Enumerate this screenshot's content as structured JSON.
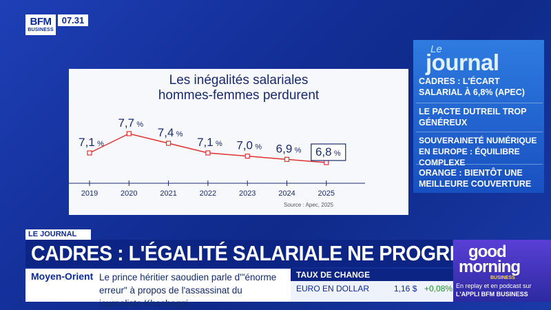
{
  "header": {
    "logo_top": "BFM",
    "logo_bottom": "BUSINESS",
    "time": "07.31"
  },
  "chart_panel": {
    "title_line1": "Les inégalités salariales",
    "title_line2": "hommes-femmes perdurent",
    "source": "Source : Apec, 2025"
  },
  "chart_data": {
    "type": "line",
    "title": "Les inégalités salariales hommes-femmes perdurent",
    "categories": [
      "2019",
      "2020",
      "2021",
      "2022",
      "2023",
      "2024",
      "2025"
    ],
    "series": [
      {
        "values": [
          7.1,
          7.7,
          7.4,
          7.1,
          7.0,
          6.9,
          6.8
        ]
      }
    ],
    "value_labels": [
      "7,1",
      "7,7",
      "7,4",
      "7,1",
      "7,0",
      "6,9",
      "6,8"
    ],
    "unit": "%",
    "highlighted": "2025",
    "line_color": "#e03030"
  },
  "journal": {
    "le": "Le",
    "title": "journal",
    "items": [
      "CADRES : L'ÉCART SALARIAL À 6,8% (APEC)",
      "LE PACTE DUTREIL TROP GÉNÉREUX",
      "SOUVERAINETÉ NUMÉRIQUE EN EUROPE : ÉQUILIBRE COMPLEXE",
      "ORANGE : BIENTÔT UNE MEILLEURE COUVERTURE"
    ]
  },
  "banner": {
    "tag": "LE JOURNAL",
    "headline": "CADRES : L'ÉGALITÉ SALARIALE NE PROGRESSE PLUS"
  },
  "ticker": {
    "label": "Moyen-Orient",
    "text": "Le prince héritier saoudien parle d'\"énorme erreur\" à propos de l'assassinat du journaliste Khashoggi."
  },
  "fx": {
    "title": "TAUX DE CHANGE",
    "name": "EURO EN DOLLAR",
    "value": "1,16 $",
    "change": "+0,08%"
  },
  "promo": {
    "good": "good",
    "morning": "morning",
    "business": "BUSINESS",
    "sub1": "En replay et en podcast sur",
    "sub2": "L'APPLI BFM BUSINESS"
  },
  "colors": {
    "brand": "#0b2a99",
    "accent_red": "#e03030",
    "fx_up": "#1f8f2a"
  }
}
